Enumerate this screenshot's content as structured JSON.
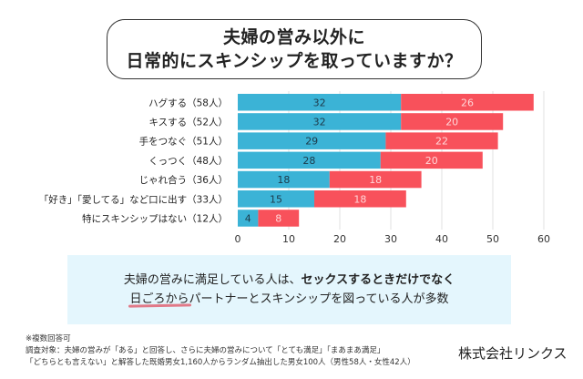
{
  "title": {
    "line1": "夫婦の営み以外に",
    "line2": "日常的にスキンシップを取っていますか？"
  },
  "colors": {
    "series1": "#3bb3d6",
    "series2": "#f8515b",
    "note_bg": "#e4f6fd",
    "underline": "#e05a6a"
  },
  "chart_data": {
    "type": "bar",
    "orientation": "horizontal",
    "stacked": true,
    "categories": [
      "ハグする（58人）",
      "キスする（52人）",
      "手をつなぐ（51人）",
      "くっつく（48人）",
      "じゃれ合う（36人）",
      "「好き」「愛してる」など口に出す（33人）",
      "特にスキンシップはない（12人）"
    ],
    "series": [
      {
        "name": "series-blue",
        "values": [
          32,
          32,
          29,
          28,
          18,
          15,
          4
        ]
      },
      {
        "name": "series-red",
        "values": [
          26,
          20,
          22,
          20,
          18,
          18,
          8
        ]
      }
    ],
    "xlim": [
      0,
      60
    ],
    "xticks": [
      0,
      10,
      20,
      30,
      40,
      50,
      60
    ],
    "grid": true,
    "legend": "none",
    "title": "",
    "xlabel": "",
    "ylabel": ""
  },
  "note": {
    "line1_plain": "夫婦の営みに満足している人は、",
    "line1_bold": "セックスするときだけでなく",
    "line2_underlined": "日ごろから",
    "line2_rest": "パートナーとスキンシップを図っている人が多数"
  },
  "footnotes": {
    "line1": "※複数回答可",
    "line2": "調査対象：夫婦の営みが「ある」と回答し、さらに夫婦の営みについて「とても満足」「まあまあ満足」",
    "line3": "「どちらとも言えない」と解答した既婚男女1,160人からランダム抽出した男女100人（男性58人・女性42人）"
  },
  "company": "株式会社リンクス"
}
